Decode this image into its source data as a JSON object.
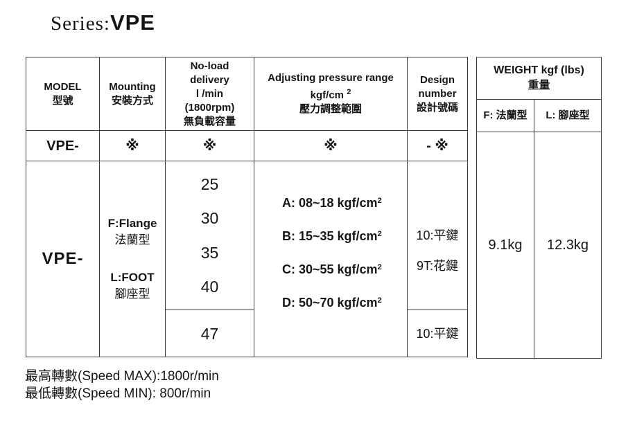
{
  "page_title": {
    "prefix": "Series:",
    "value": "VPE"
  },
  "main_table": {
    "header": {
      "model_en": "MODEL",
      "model_zh": "型號",
      "mounting_en": "Mounting",
      "mounting_zh": "安裝方式",
      "delivery_l1": "No-load",
      "delivery_l2": "delivery",
      "delivery_l3": "l /min",
      "delivery_l4": "(1800rpm)",
      "delivery_zh": "無負載容量",
      "pressure_l1": "Adjusting pressure range",
      "pressure_unit": "kgf/cm",
      "pressure_unit_sup": "2",
      "pressure_zh": "壓力調整範圍",
      "design_l1": "Design",
      "design_l2": "number",
      "design_zh": "設計號碼"
    },
    "code_row": {
      "model": "VPE-",
      "mounting": "※",
      "delivery": "※",
      "pressure": "※",
      "design": "- ※"
    },
    "body": {
      "model": "VPE-",
      "mounting_f_en": "F:Flange",
      "mounting_f_zh": "法蘭型",
      "mounting_l_en": "L:FOOT",
      "mounting_l_zh": "腳座型",
      "delivery_values": [
        "25",
        "30",
        "35",
        "40"
      ],
      "delivery_last": "47",
      "pressure_ranges": [
        {
          "text": "A: 08~18 kgf/cm",
          "sup": "2"
        },
        {
          "text": "B: 15~35 kgf/cm",
          "sup": "2"
        },
        {
          "text": "C: 30~55 kgf/cm",
          "sup": "2"
        },
        {
          "text": "D: 50~70 kgf/cm",
          "sup": "2"
        }
      ],
      "design_codes": [
        "10:平鍵",
        "9T:花鍵"
      ],
      "design_last": "10:平鍵"
    }
  },
  "weight_table": {
    "title_en": "WEIGHT kgf (lbs)",
    "title_zh": "重量",
    "flange_label": "F: 法蘭型",
    "foot_label": "L: 腳座型",
    "flange_value": "9.1kg",
    "foot_value": "12.3kg"
  },
  "footnotes": {
    "speed_max": "最高轉數(Speed MAX):1800r/min",
    "speed_min": "最低轉數(Speed MIN): 800r/min"
  }
}
